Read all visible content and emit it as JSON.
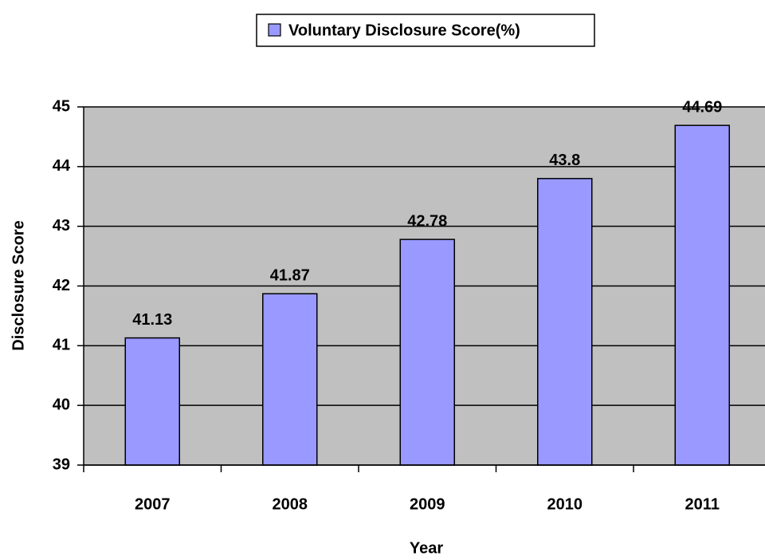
{
  "chart_data": {
    "type": "bar",
    "legend_label": "Voluntary Disclosure Score(%)",
    "x_label": "Year",
    "y_label": "Disclosure Score",
    "categories": [
      "2007",
      "2008",
      "2009",
      "2010",
      "2011"
    ],
    "values": [
      41.13,
      41.87,
      42.78,
      43.8,
      44.69
    ],
    "color": "#9999ff",
    "plot_background": "#c0c0c0",
    "ylim": [
      39,
      45
    ],
    "yticks": [
      39,
      40,
      41,
      42,
      43,
      44,
      45
    ],
    "grid": true,
    "legend": "top"
  }
}
